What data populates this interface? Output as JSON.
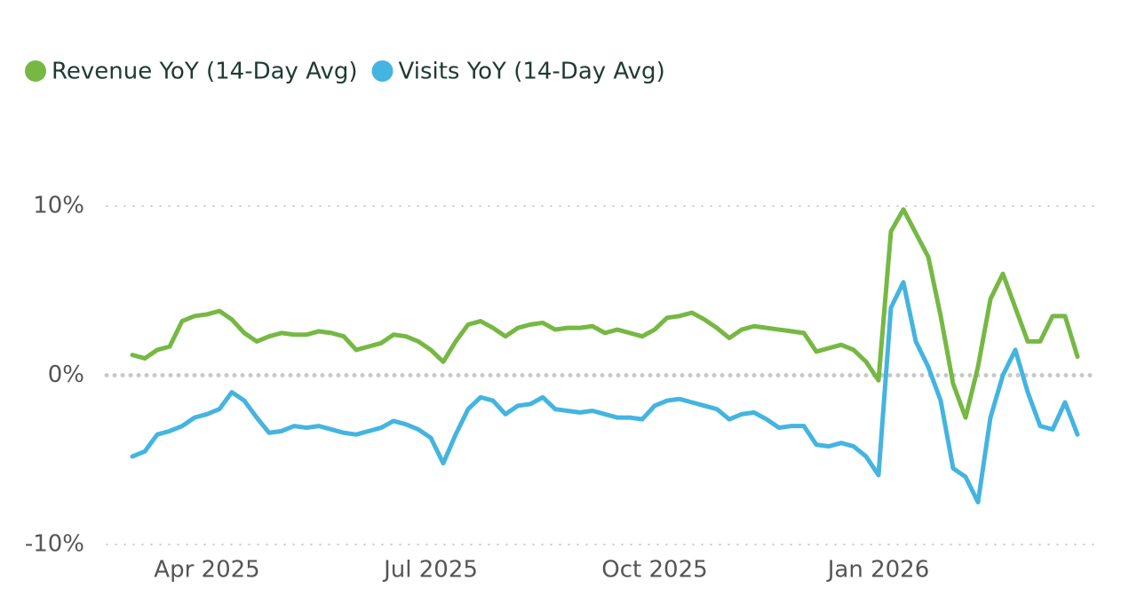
{
  "chart_data": {
    "type": "line",
    "categories": [
      "Apr 2025",
      "Jul 2025",
      "Oct 2025",
      "Jan 2026"
    ],
    "x": [
      null,
      null,
      null,
      null,
      null,
      null,
      "Apr 2025",
      null,
      null,
      null,
      null,
      null,
      null,
      null,
      null,
      null,
      null,
      null,
      null,
      null,
      null,
      null,
      null,
      null,
      "Jul 2025",
      null,
      null,
      null,
      null,
      null,
      null,
      null,
      null,
      null,
      null,
      null,
      null,
      null,
      null,
      null,
      null,
      null,
      "Oct 2025",
      null,
      null,
      null,
      null,
      null,
      null,
      null,
      null,
      null,
      null,
      null,
      null,
      null,
      null,
      null,
      null,
      null,
      "Jan 2026",
      null,
      null,
      null,
      null,
      null,
      null,
      null,
      null,
      null,
      null,
      null,
      null,
      null,
      null,
      null,
      null
    ],
    "series": [
      {
        "name": "Revenue YoY (14-Day Avg)",
        "color": "#76b843",
        "values": [
          1.2,
          1.0,
          1.5,
          1.7,
          3.2,
          3.5,
          3.6,
          3.8,
          3.3,
          2.5,
          2.0,
          2.3,
          2.5,
          2.4,
          2.4,
          2.6,
          2.5,
          2.3,
          1.5,
          1.7,
          1.9,
          2.4,
          2.3,
          2.0,
          1.5,
          0.8,
          2.0,
          3.0,
          3.2,
          2.8,
          2.3,
          2.8,
          3.0,
          3.1,
          2.7,
          2.8,
          2.8,
          2.9,
          2.5,
          2.7,
          2.5,
          2.3,
          2.7,
          3.4,
          3.5,
          3.7,
          3.3,
          2.8,
          2.2,
          2.7,
          2.9,
          2.8,
          2.7,
          2.6,
          2.5,
          1.4,
          1.6,
          1.8,
          1.5,
          0.8,
          -0.3,
          8.5,
          9.8,
          8.4,
          7.0,
          3.5,
          -0.5,
          -2.5,
          0.5,
          4.5,
          6.0,
          4.0,
          2.0,
          2.0,
          3.5,
          3.5,
          1.1
        ]
      },
      {
        "name": "Visits YoY (14-Day Avg)",
        "color": "#44b4e0",
        "values": [
          -4.8,
          -4.5,
          -3.5,
          -3.3,
          -3.0,
          -2.5,
          -2.3,
          -2.0,
          -1.0,
          -1.5,
          -2.5,
          -3.4,
          -3.3,
          -3.0,
          -3.1,
          -3.0,
          -3.2,
          -3.4,
          -3.5,
          -3.3,
          -3.1,
          -2.7,
          -2.9,
          -3.2,
          -3.7,
          -5.2,
          -3.5,
          -2.0,
          -1.3,
          -1.5,
          -2.3,
          -1.8,
          -1.7,
          -1.3,
          -2.0,
          -2.1,
          -2.2,
          -2.1,
          -2.3,
          -2.5,
          -2.5,
          -2.6,
          -1.8,
          -1.5,
          -1.4,
          -1.6,
          -1.8,
          -2.0,
          -2.6,
          -2.3,
          -2.2,
          -2.6,
          -3.1,
          -3.0,
          -3.0,
          -4.1,
          -4.2,
          -4.0,
          -4.2,
          -4.8,
          -5.9,
          4.0,
          5.5,
          2.0,
          0.5,
          -1.5,
          -5.5,
          -6.0,
          -7.5,
          -2.5,
          0.0,
          1.5,
          -1.0,
          -3.0,
          -3.2,
          -1.6,
          -3.5
        ]
      }
    ],
    "ylim": [
      -10,
      10
    ],
    "yticks": [
      {
        "value": -10,
        "label": "-10%"
      },
      {
        "value": 0,
        "label": "0%"
      },
      {
        "value": 10,
        "label": "10%"
      }
    ],
    "grid": true,
    "legend": "top-left"
  }
}
